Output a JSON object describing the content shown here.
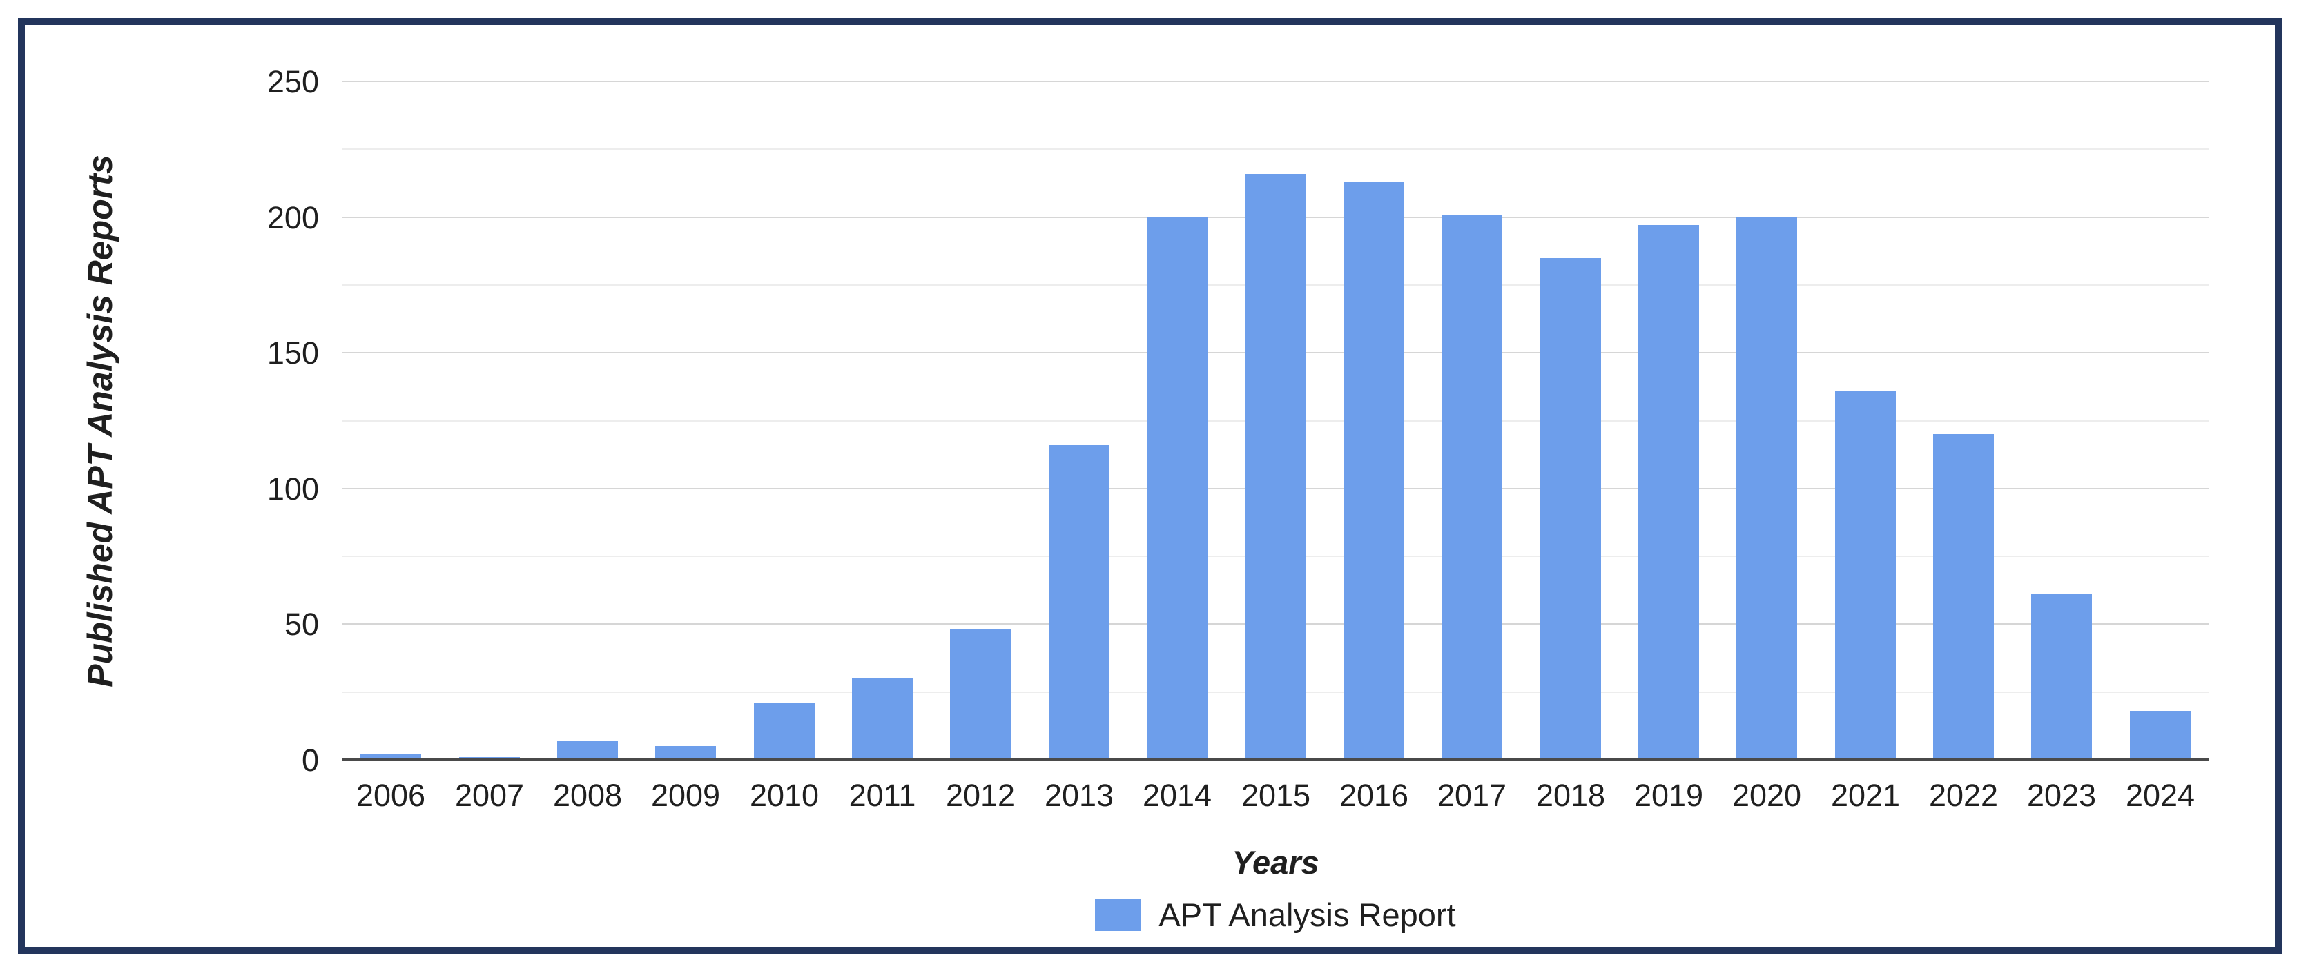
{
  "frame": {
    "border_color": "#23355c",
    "background_color": "#ffffff"
  },
  "chart_data": {
    "type": "bar",
    "title": "",
    "categories": [
      "2006",
      "2007",
      "2008",
      "2009",
      "2010",
      "2011",
      "2012",
      "2013",
      "2014",
      "2015",
      "2016",
      "2017",
      "2018",
      "2019",
      "2020",
      "2021",
      "2022",
      "2023",
      "2024"
    ],
    "values": [
      2,
      1,
      7,
      5,
      21,
      30,
      48,
      116,
      200,
      216,
      213,
      201,
      185,
      197,
      200,
      136,
      120,
      61,
      18
    ],
    "series_name": "APT Analysis Report",
    "xlabel": "Years",
    "ylabel": "Published APT Analysis Reports",
    "ylim": [
      0,
      250
    ],
    "ytick_interval": 50,
    "minor_gridline_interval": 25,
    "ytick_labels": [
      "0",
      "50",
      "100",
      "150",
      "200",
      "250"
    ],
    "grid": true,
    "legend_position": "bottom",
    "bar_color": "#6d9eeb",
    "minor_grid_color": "#ededed",
    "major_grid_color": "#d6d6d6",
    "axis_line_color": "#4a4a4a"
  }
}
